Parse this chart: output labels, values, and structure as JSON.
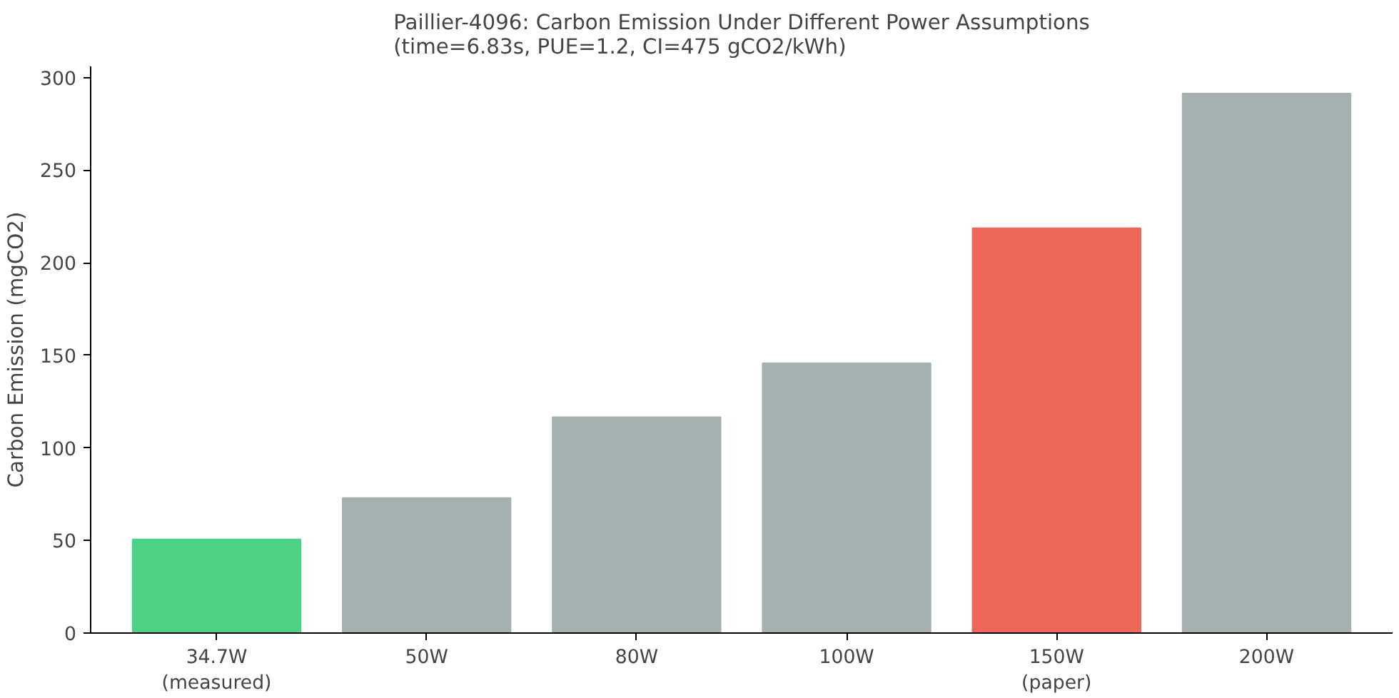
{
  "chart_data": {
    "type": "bar",
    "title": "Paillier-4096: Carbon Emission Under Different Power Assumptions\n(time=6.83s, PUE=1.2, CI=475 gCO2/kWh)",
    "ylabel": "Carbon Emission (mgCO2)",
    "categories": [
      "34.7W\n(measured)",
      "50W",
      "80W",
      "100W",
      "150W\n(paper)",
      "200W"
    ],
    "values": [
      50.6,
      72.9,
      116.6,
      145.7,
      218.6,
      291.4
    ],
    "colors": [
      "#4cd185",
      "#a5b1b1",
      "#a5b1b1",
      "#a5b1b1",
      "#ec6759",
      "#a5b1b1"
    ],
    "ylim": [
      0,
      306
    ],
    "yticks": [
      0,
      50,
      100,
      150,
      200,
      250,
      300
    ],
    "grid": false
  }
}
